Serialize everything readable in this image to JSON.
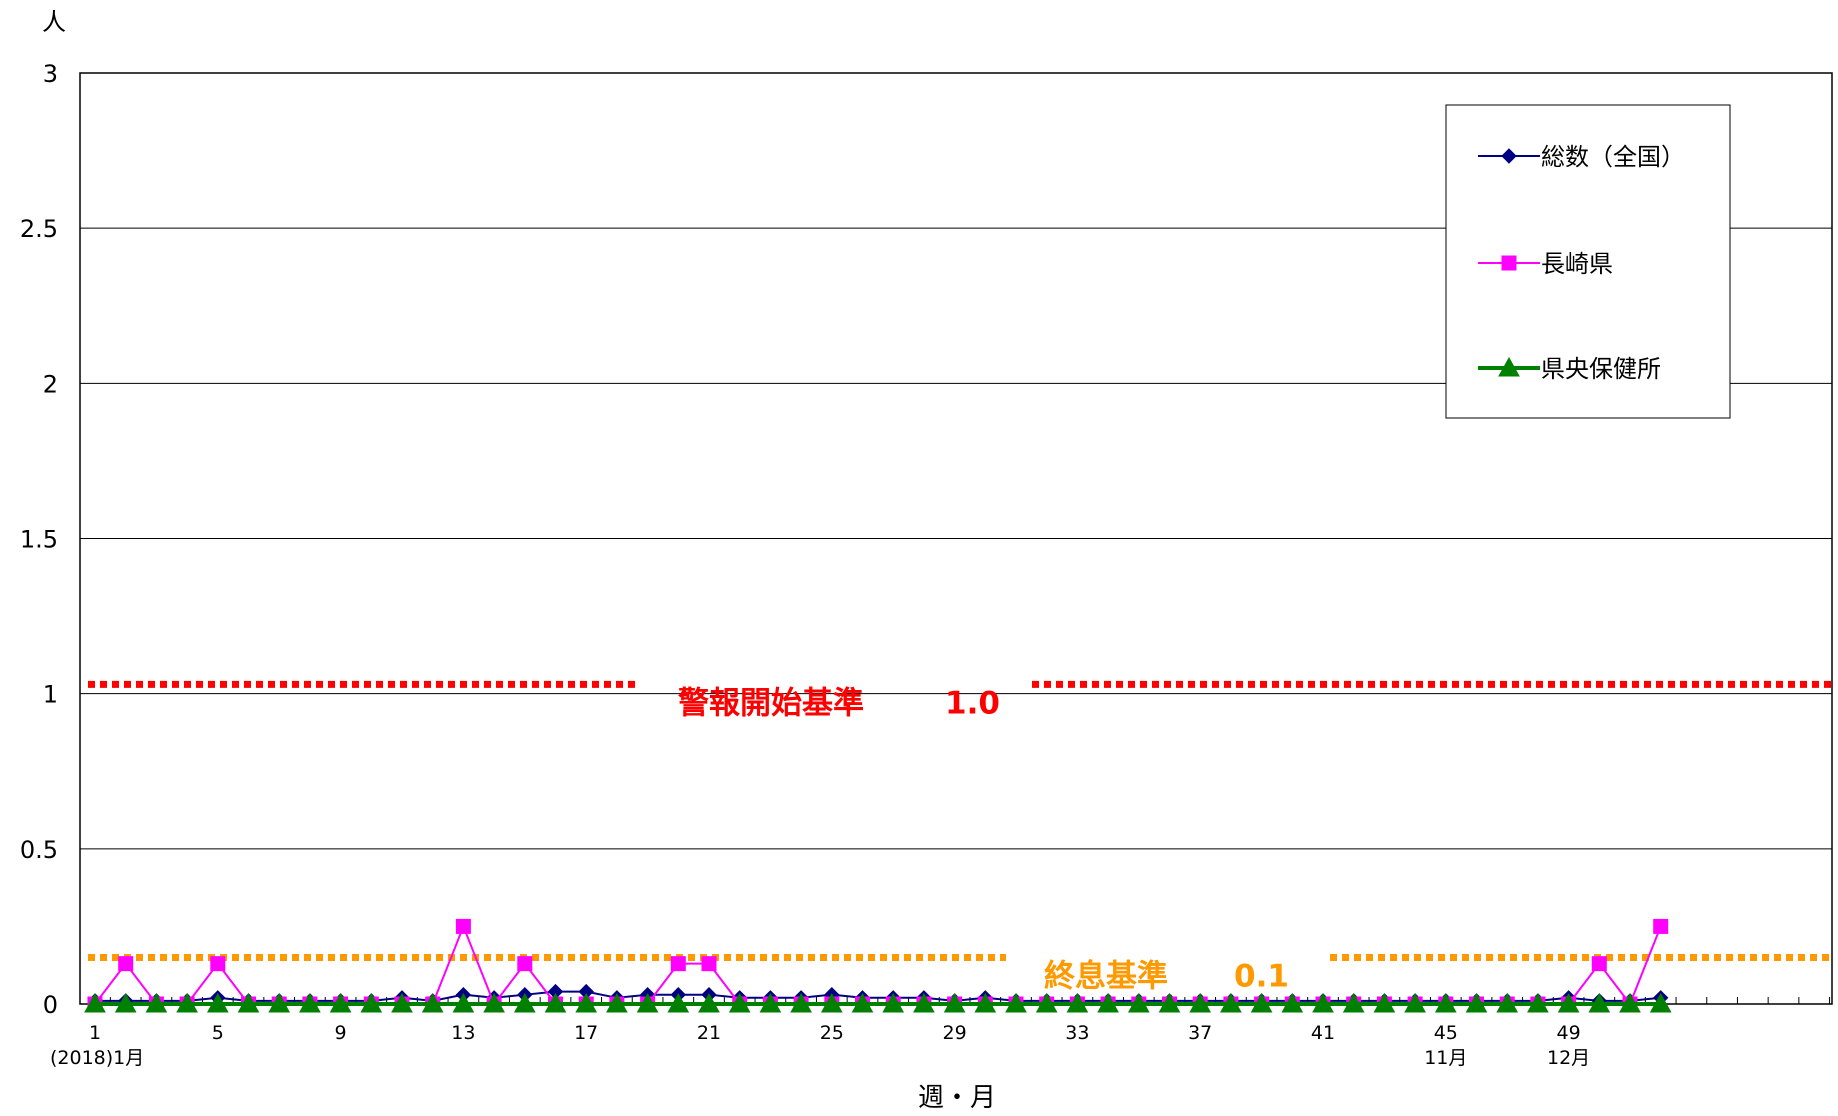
{
  "chart_data": {
    "type": "line",
    "title": "",
    "y_unit_label": "人",
    "xlabel": "週・月",
    "ylim": [
      0,
      3
    ],
    "y_ticks": [
      {
        "value": 0,
        "label": "0"
      },
      {
        "value": 0.5,
        "label": "0.5"
      },
      {
        "value": 1,
        "label": "1"
      },
      {
        "value": 1.5,
        "label": "1.5"
      },
      {
        "value": 2,
        "label": "2"
      },
      {
        "value": 2.5,
        "label": "2.5"
      },
      {
        "value": 3,
        "label": "3"
      }
    ],
    "x_range": [
      1,
      57
    ],
    "x_ticks": [
      {
        "week": 1,
        "label": "1"
      },
      {
        "week": 5,
        "label": "5"
      },
      {
        "week": 9,
        "label": "9"
      },
      {
        "week": 13,
        "label": "13"
      },
      {
        "week": 17,
        "label": "17"
      },
      {
        "week": 21,
        "label": "21"
      },
      {
        "week": 25,
        "label": "25"
      },
      {
        "week": 29,
        "label": "29"
      },
      {
        "week": 33,
        "label": "33"
      },
      {
        "week": 37,
        "label": "37"
      },
      {
        "week": 41,
        "label": "41"
      },
      {
        "week": 45,
        "label": "45"
      },
      {
        "week": 49,
        "label": "49"
      }
    ],
    "month_labels": [
      {
        "week": 1,
        "label": "(2018)1月"
      },
      {
        "week": 45,
        "label": "11月"
      },
      {
        "week": 49,
        "label": "12月"
      }
    ],
    "grid": "horizontal",
    "legend_position": "top-right",
    "thresholds": [
      {
        "value": 1.03,
        "label": "警報開始基準",
        "value_label": "1.0",
        "color": "#ff0000"
      },
      {
        "value": 0.15,
        "label": "終息基準",
        "value_label": "0.1",
        "color": "#ff9900"
      }
    ],
    "series": [
      {
        "name": "総数（全国）",
        "color": "#000080",
        "marker": "diamond",
        "x": [
          1,
          2,
          3,
          4,
          5,
          6,
          7,
          8,
          9,
          10,
          11,
          12,
          13,
          14,
          15,
          16,
          17,
          18,
          19,
          20,
          21,
          22,
          23,
          24,
          25,
          26,
          27,
          28,
          29,
          30,
          31,
          32,
          33,
          34,
          35,
          36,
          37,
          38,
          39,
          40,
          41,
          42,
          43,
          44,
          45,
          46,
          47,
          48,
          49,
          50,
          51,
          52
        ],
        "values": [
          0.01,
          0.01,
          0.01,
          0.01,
          0.02,
          0.01,
          0.01,
          0.01,
          0.01,
          0.01,
          0.02,
          0.01,
          0.03,
          0.02,
          0.03,
          0.04,
          0.04,
          0.02,
          0.03,
          0.03,
          0.03,
          0.02,
          0.02,
          0.02,
          0.03,
          0.02,
          0.02,
          0.02,
          0.01,
          0.02,
          0.01,
          0.01,
          0.01,
          0.01,
          0.01,
          0.01,
          0.01,
          0.01,
          0.01,
          0.01,
          0.01,
          0.01,
          0.01,
          0.01,
          0.01,
          0.01,
          0.01,
          0.01,
          0.02,
          0.01,
          0.01,
          0.02
        ]
      },
      {
        "name": "長崎県",
        "color": "#ff00ff",
        "marker": "square",
        "x": [
          1,
          2,
          3,
          4,
          5,
          6,
          7,
          8,
          9,
          10,
          11,
          12,
          13,
          14,
          15,
          16,
          17,
          18,
          19,
          20,
          21,
          22,
          23,
          24,
          25,
          26,
          27,
          28,
          29,
          30,
          31,
          32,
          33,
          34,
          35,
          36,
          37,
          38,
          39,
          40,
          41,
          42,
          43,
          44,
          45,
          46,
          47,
          48,
          49,
          50,
          51,
          52
        ],
        "values": [
          0,
          0.13,
          0,
          0,
          0.13,
          0,
          0,
          0,
          0,
          0,
          0,
          0,
          0.25,
          0,
          0.13,
          0,
          0,
          0,
          0,
          0.13,
          0.13,
          0,
          0,
          0,
          0,
          0,
          0,
          0,
          0,
          0,
          0,
          0,
          0,
          0,
          0,
          0,
          0,
          0,
          0,
          0,
          0,
          0,
          0,
          0,
          0,
          0,
          0,
          0,
          0,
          0.13,
          0,
          0.25
        ]
      },
      {
        "name": "県央保健所",
        "color": "#008000",
        "marker": "triangle",
        "x": [
          1,
          2,
          3,
          4,
          5,
          6,
          7,
          8,
          9,
          10,
          11,
          12,
          13,
          14,
          15,
          16,
          17,
          18,
          19,
          20,
          21,
          22,
          23,
          24,
          25,
          26,
          27,
          28,
          29,
          30,
          31,
          32,
          33,
          34,
          35,
          36,
          37,
          38,
          39,
          40,
          41,
          42,
          43,
          44,
          45,
          46,
          47,
          48,
          49,
          50,
          51,
          52
        ],
        "values": [
          0,
          0,
          0,
          0,
          0,
          0,
          0,
          0,
          0,
          0,
          0,
          0,
          0,
          0,
          0,
          0,
          0,
          0,
          0,
          0,
          0,
          0,
          0,
          0,
          0,
          0,
          0,
          0,
          0,
          0,
          0,
          0,
          0,
          0,
          0,
          0,
          0,
          0,
          0,
          0,
          0,
          0,
          0,
          0,
          0,
          0,
          0,
          0,
          0,
          0,
          0,
          0
        ]
      }
    ]
  }
}
